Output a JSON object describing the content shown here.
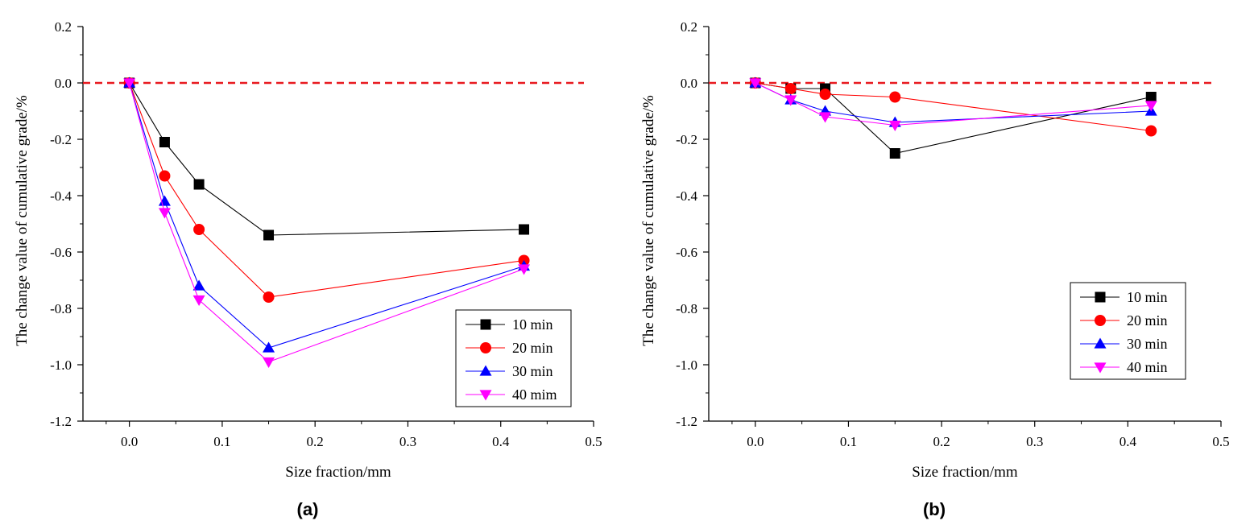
{
  "chart_data": [
    {
      "type": "line",
      "panel_label": "(a)",
      "title": "",
      "xlabel": "Size fraction/mm",
      "ylabel": "The change value of cumulative grade/%",
      "xlim": [
        -0.05,
        0.5
      ],
      "ylim": [
        -1.2,
        0.2
      ],
      "xticks": [
        0.0,
        0.1,
        0.2,
        0.3,
        0.4,
        0.5
      ],
      "xtick_labels": [
        "0.0",
        "0.1",
        "0.2",
        "0.3",
        "0.4",
        "0.5"
      ],
      "yticks": [
        0.2,
        0.0,
        -0.2,
        -0.4,
        -0.6,
        -0.8,
        -1.0,
        -1.2
      ],
      "ytick_labels": [
        "0.2",
        "0.0",
        "-0.2",
        "-0.4",
        "-0.6",
        "-0.8",
        "-1.0",
        "-1.2"
      ],
      "reference_line": {
        "y": 0.0,
        "style": "dashed",
        "color": "#e8191f"
      },
      "legend_position": "lower-right",
      "x": [
        0.0,
        0.038,
        0.075,
        0.15,
        0.425
      ],
      "series": [
        {
          "name": "10 min",
          "color": "#000000",
          "marker": "square",
          "values": [
            0.0,
            -0.21,
            -0.36,
            -0.54,
            -0.52
          ]
        },
        {
          "name": "20 min",
          "color": "#ff0000",
          "marker": "circle",
          "values": [
            0.0,
            -0.33,
            -0.52,
            -0.76,
            -0.63
          ]
        },
        {
          "name": "30 min",
          "color": "#0000ff",
          "marker": "triangle-up",
          "values": [
            0.0,
            -0.42,
            -0.72,
            -0.94,
            -0.65
          ]
        },
        {
          "name": "40 mim",
          "color": "#ff00ff",
          "marker": "triangle-down",
          "values": [
            0.0,
            -0.46,
            -0.77,
            -0.99,
            -0.66
          ]
        }
      ]
    },
    {
      "type": "line",
      "panel_label": "(b)",
      "title": "",
      "xlabel": "Size fraction/mm",
      "ylabel": "The change value of cumulative grade/%",
      "xlim": [
        -0.05,
        0.5
      ],
      "ylim": [
        -1.2,
        0.2
      ],
      "xticks": [
        0.0,
        0.1,
        0.2,
        0.3,
        0.4,
        0.5
      ],
      "xtick_labels": [
        "0.0",
        "0.1",
        "0.2",
        "0.3",
        "0.4",
        "0.5"
      ],
      "yticks": [
        0.2,
        0.0,
        -0.2,
        -0.4,
        -0.6,
        -0.8,
        -1.0,
        -1.2
      ],
      "ytick_labels": [
        "0.2",
        "0.0",
        "-0.2",
        "-0.4",
        "-0.6",
        "-0.8",
        "-1.0",
        "-1.2"
      ],
      "reference_line": {
        "y": 0.0,
        "style": "dashed",
        "color": "#e8191f"
      },
      "legend_position": "center-right",
      "x": [
        0.0,
        0.038,
        0.075,
        0.15,
        0.425
      ],
      "series": [
        {
          "name": "10 min",
          "color": "#000000",
          "marker": "square",
          "values": [
            0.0,
            -0.02,
            -0.02,
            -0.25,
            -0.05
          ]
        },
        {
          "name": "20 min",
          "color": "#ff0000",
          "marker": "circle",
          "values": [
            0.0,
            -0.02,
            -0.04,
            -0.05,
            -0.17
          ]
        },
        {
          "name": "30 min",
          "color": "#0000ff",
          "marker": "triangle-up",
          "values": [
            0.0,
            -0.06,
            -0.1,
            -0.14,
            -0.1
          ]
        },
        {
          "name": "40 min",
          "color": "#ff00ff",
          "marker": "triangle-down",
          "values": [
            0.0,
            -0.06,
            -0.12,
            -0.15,
            -0.08
          ]
        }
      ]
    }
  ]
}
